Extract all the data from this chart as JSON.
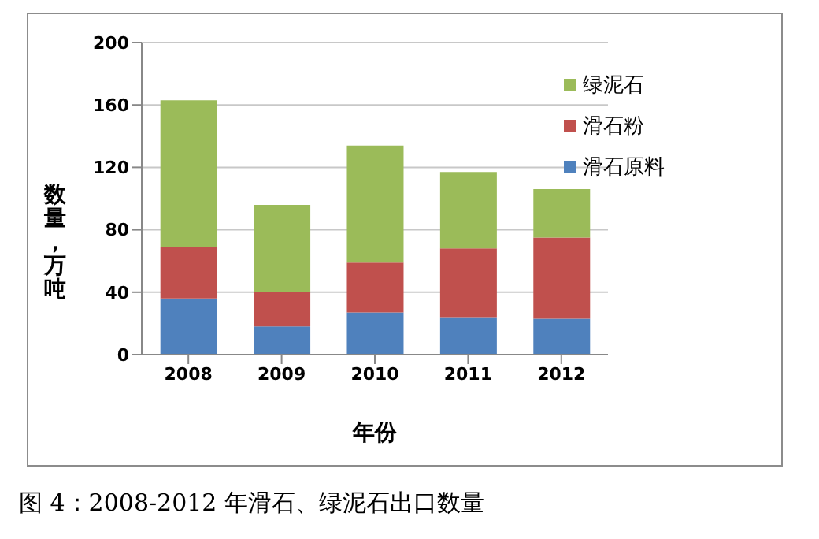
{
  "chart_data": {
    "type": "bar",
    "stacked": true,
    "xlabel": "年份",
    "ylabel": "数量，万吨",
    "categories": [
      "2008",
      "2009",
      "2010",
      "2011",
      "2012"
    ],
    "series": [
      {
        "name": "滑石原料",
        "color": "#4f81bd",
        "values": [
          36,
          18,
          27,
          24,
          23
        ]
      },
      {
        "name": "滑石粉",
        "color": "#c0504d",
        "values": [
          33,
          22,
          32,
          44,
          52
        ]
      },
      {
        "name": "绿泥石",
        "color": "#9bbb59",
        "values": [
          94,
          56,
          75,
          49,
          31
        ]
      }
    ],
    "ylim": [
      0,
      200
    ],
    "yticks": [
      0,
      40,
      80,
      120,
      160,
      200
    ],
    "grid": "y",
    "legend": "top right",
    "annotations": [
      "图 4：2008-2012 年滑石、绿泥石出口数量"
    ]
  }
}
